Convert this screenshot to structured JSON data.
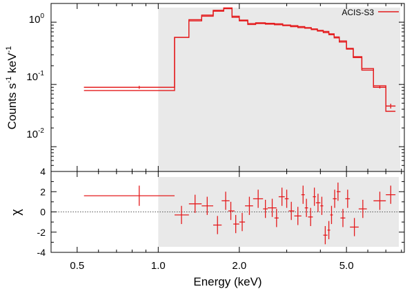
{
  "colors": {
    "series": "#e41a1c",
    "shade": "#e9e9e9",
    "frame": "#000000"
  },
  "chart_data": [
    {
      "type": "step",
      "panel": "spectrum",
      "title": "",
      "xlabel": "Energy (keV)",
      "ylabel_base": "Counts s",
      "ylabel_exp1": "-1",
      "ylabel_mid": " keV",
      "ylabel_exp2": "-1",
      "xscale": "log",
      "yscale": "log",
      "xlim": [
        0.4,
        8.2
      ],
      "ylim": [
        0.004,
        2.0
      ],
      "xticks": [
        {
          "v": 0.5,
          "label": "0.5"
        },
        {
          "v": 1.0,
          "label": "1.0"
        },
        {
          "v": 2.0,
          "label": "2.0"
        },
        {
          "v": 5.0,
          "label": "5.0"
        }
      ],
      "yticks": [
        {
          "v": 1,
          "base": "10",
          "exp": "0"
        },
        {
          "v": 0.1,
          "base": "10",
          "exp": "-1"
        },
        {
          "v": 0.01,
          "base": "10",
          "exp": "-2"
        }
      ],
      "shaded_band": [
        1.0,
        8.2
      ],
      "legend": {
        "label": "ACIS-S3",
        "position": "top-right"
      },
      "model_step": {
        "edges": [
          0.53,
          1.15,
          1.3,
          1.45,
          1.6,
          1.75,
          1.88,
          2.0,
          2.15,
          2.3,
          2.5,
          2.7,
          2.9,
          3.1,
          3.3,
          3.5,
          3.7,
          3.9,
          4.1,
          4.3,
          4.5,
          4.7,
          5.0,
          5.3,
          5.7,
          6.3,
          7.0,
          7.6
        ],
        "values": [
          0.08,
          0.57,
          1.05,
          1.25,
          1.5,
          1.65,
          1.2,
          1.05,
          0.92,
          0.95,
          0.93,
          0.91,
          0.88,
          0.85,
          0.82,
          0.8,
          0.76,
          0.72,
          0.68,
          0.63,
          0.56,
          0.48,
          0.37,
          0.27,
          0.17,
          0.09,
          0.037
        ]
      },
      "data_step": {
        "edges": [
          0.53,
          1.15,
          1.3,
          1.45,
          1.6,
          1.75,
          1.88,
          2.0,
          2.15,
          2.3,
          2.5,
          2.7,
          2.9,
          3.1,
          3.3,
          3.5,
          3.7,
          3.9,
          4.1,
          4.3,
          4.5,
          4.7,
          5.0,
          5.3,
          5.7,
          6.3,
          7.0,
          7.6
        ],
        "values": [
          0.09,
          0.57,
          1.1,
          1.3,
          1.55,
          1.7,
          1.25,
          1.08,
          0.95,
          0.98,
          0.96,
          0.94,
          0.9,
          0.88,
          0.85,
          0.82,
          0.78,
          0.74,
          0.71,
          0.65,
          0.58,
          0.5,
          0.38,
          0.28,
          0.18,
          0.095,
          0.045
        ]
      },
      "data_points": [
        {
          "x": 0.85,
          "y": 0.09,
          "xlo": 0.53,
          "xhi": 1.15,
          "ylo": 0.085,
          "yhi": 0.095
        },
        {
          "x": 6.65,
          "y": 0.09,
          "xlo": 6.3,
          "xhi": 7.0,
          "ylo": 0.086,
          "yhi": 0.095
        },
        {
          "x": 7.3,
          "y": 0.045,
          "xlo": 7.0,
          "xhi": 7.6,
          "ylo": 0.041,
          "yhi": 0.049
        }
      ]
    },
    {
      "type": "scatter",
      "panel": "residuals",
      "ylabel": "χ",
      "xscale": "log",
      "xlim": [
        0.4,
        8.2
      ],
      "ylim": [
        -4,
        4
      ],
      "yticks": [
        {
          "v": 4,
          "label": "4"
        },
        {
          "v": 2,
          "label": "2"
        },
        {
          "v": 0,
          "label": "0"
        },
        {
          "v": -2,
          "label": "-2"
        },
        {
          "v": -4,
          "label": "-4"
        }
      ],
      "zero_line": 0,
      "points": [
        {
          "x": 0.85,
          "y": 1.6,
          "xlo": 0.53,
          "xhi": 1.15,
          "ylo": 0.6,
          "yhi": 2.6
        },
        {
          "x": 1.22,
          "y": -0.3,
          "xlo": 1.15,
          "xhi": 1.3,
          "ylo": -1.2,
          "yhi": 0.6
        },
        {
          "x": 1.37,
          "y": 0.8,
          "xlo": 1.3,
          "xhi": 1.45,
          "ylo": -0.1,
          "yhi": 1.7
        },
        {
          "x": 1.52,
          "y": 0.6,
          "xlo": 1.45,
          "xhi": 1.6,
          "ylo": -0.3,
          "yhi": 1.5
        },
        {
          "x": 1.66,
          "y": -1.3,
          "xlo": 1.6,
          "xhi": 1.72,
          "ylo": -2.2,
          "yhi": -0.4
        },
        {
          "x": 1.78,
          "y": 1.1,
          "xlo": 1.72,
          "xhi": 1.84,
          "ylo": 0.2,
          "yhi": 2.0
        },
        {
          "x": 1.86,
          "y": 0.1,
          "xlo": 1.82,
          "xhi": 1.92,
          "ylo": -0.8,
          "yhi": 1.0
        },
        {
          "x": 1.94,
          "y": -1.2,
          "xlo": 1.9,
          "xhi": 2.0,
          "ylo": -2.1,
          "yhi": -0.3
        },
        {
          "x": 2.05,
          "y": -1.0,
          "xlo": 2.0,
          "xhi": 2.1,
          "ylo": -1.9,
          "yhi": -0.1
        },
        {
          "x": 2.18,
          "y": 0.6,
          "xlo": 2.1,
          "xhi": 2.25,
          "ylo": -0.3,
          "yhi": 1.5
        },
        {
          "x": 2.35,
          "y": 1.3,
          "xlo": 2.25,
          "xhi": 2.45,
          "ylo": 0.4,
          "yhi": 2.2
        },
        {
          "x": 2.5,
          "y": 0.3,
          "xlo": 2.45,
          "xhi": 2.55,
          "ylo": -0.6,
          "yhi": 1.2
        },
        {
          "x": 2.65,
          "y": 0.4,
          "xlo": 2.55,
          "xhi": 2.75,
          "ylo": -0.5,
          "yhi": 1.3
        },
        {
          "x": 2.75,
          "y": -0.6,
          "xlo": 2.7,
          "xhi": 2.8,
          "ylo": -1.5,
          "yhi": 0.3
        },
        {
          "x": 2.88,
          "y": 1.5,
          "xlo": 2.8,
          "xhi": 2.95,
          "ylo": 0.6,
          "yhi": 2.4
        },
        {
          "x": 3.0,
          "y": 1.3,
          "xlo": 2.95,
          "xhi": 3.05,
          "ylo": 0.4,
          "yhi": 2.2
        },
        {
          "x": 3.12,
          "y": 0.1,
          "xlo": 3.05,
          "xhi": 3.2,
          "ylo": -0.8,
          "yhi": 1.0
        },
        {
          "x": 3.3,
          "y": -0.4,
          "xlo": 3.2,
          "xhi": 3.4,
          "ylo": -1.3,
          "yhi": 0.5
        },
        {
          "x": 3.45,
          "y": 1.7,
          "xlo": 3.4,
          "xhi": 3.5,
          "ylo": 0.8,
          "yhi": 2.6
        },
        {
          "x": 3.55,
          "y": 0.4,
          "xlo": 3.5,
          "xhi": 3.6,
          "ylo": -0.5,
          "yhi": 1.3
        },
        {
          "x": 3.68,
          "y": -0.5,
          "xlo": 3.6,
          "xhi": 3.75,
          "ylo": -1.4,
          "yhi": 0.4
        },
        {
          "x": 3.8,
          "y": 1.5,
          "xlo": 3.75,
          "xhi": 3.85,
          "ylo": 0.6,
          "yhi": 2.4
        },
        {
          "x": 3.92,
          "y": 0.9,
          "xlo": 3.85,
          "xhi": 4.0,
          "ylo": 0.0,
          "yhi": 1.8
        },
        {
          "x": 4.05,
          "y": 0.6,
          "xlo": 4.0,
          "xhi": 4.1,
          "ylo": -0.3,
          "yhi": 1.5
        },
        {
          "x": 4.17,
          "y": -2.3,
          "xlo": 4.1,
          "xhi": 4.25,
          "ylo": -3.2,
          "yhi": -1.4
        },
        {
          "x": 4.3,
          "y": -1.8,
          "xlo": 4.25,
          "xhi": 4.35,
          "ylo": -2.7,
          "yhi": -0.9
        },
        {
          "x": 4.4,
          "y": -0.3,
          "xlo": 4.35,
          "xhi": 4.45,
          "ylo": -1.2,
          "yhi": 0.6
        },
        {
          "x": 4.52,
          "y": 1.3,
          "xlo": 4.45,
          "xhi": 4.6,
          "ylo": 0.4,
          "yhi": 2.2
        },
        {
          "x": 4.65,
          "y": 2.0,
          "xlo": 4.6,
          "xhi": 4.75,
          "ylo": 1.1,
          "yhi": 2.9
        },
        {
          "x": 4.85,
          "y": -0.6,
          "xlo": 4.75,
          "xhi": 4.95,
          "ylo": -1.5,
          "yhi": 0.3
        },
        {
          "x": 5.05,
          "y": 1.3,
          "xlo": 4.95,
          "xhi": 5.15,
          "ylo": 0.4,
          "yhi": 2.2
        },
        {
          "x": 5.35,
          "y": -1.5,
          "xlo": 5.15,
          "xhi": 5.55,
          "ylo": -2.4,
          "yhi": -0.6
        },
        {
          "x": 5.75,
          "y": 0.3,
          "xlo": 5.55,
          "xhi": 5.95,
          "ylo": -0.6,
          "yhi": 1.2
        },
        {
          "x": 6.65,
          "y": 1.1,
          "xlo": 6.3,
          "xhi": 7.0,
          "ylo": 0.2,
          "yhi": 2.0
        },
        {
          "x": 7.3,
          "y": 1.7,
          "xlo": 7.0,
          "xhi": 7.6,
          "ylo": 0.8,
          "yhi": 2.6
        }
      ]
    }
  ]
}
